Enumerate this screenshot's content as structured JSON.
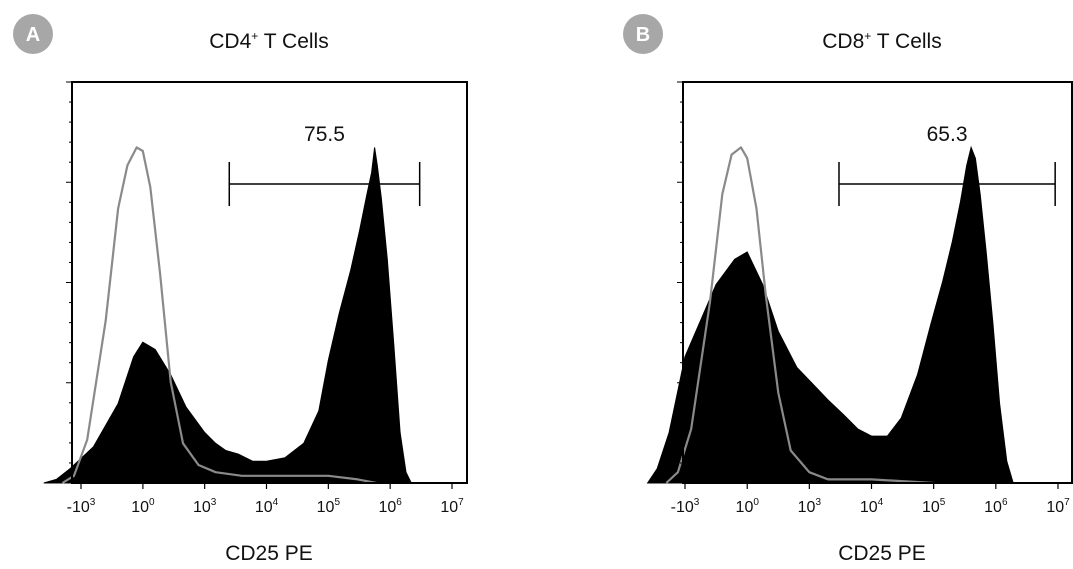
{
  "chart_data": [
    {
      "type": "area",
      "panel_letter": "A",
      "title": "CD4",
      "title_superscript": "+",
      "title_suffix": " T Cells",
      "xlabel": "CD25 PE",
      "ylabel": "",
      "x_scale": "biexponential",
      "x_ticks": [
        {
          "value": -1000,
          "base": "-10",
          "exp": "3"
        },
        {
          "value": 1,
          "base": "10",
          "exp": "0"
        },
        {
          "value": 1000,
          "base": "10",
          "exp": "3"
        },
        {
          "value": 10000,
          "base": "10",
          "exp": "4"
        },
        {
          "value": 100000,
          "base": "10",
          "exp": "5"
        },
        {
          "value": 1000000,
          "base": "10",
          "exp": "6"
        },
        {
          "value": 10000000,
          "base": "10",
          "exp": "7"
        }
      ],
      "ylim": [
        0,
        100
      ],
      "gate": {
        "label": "75.5",
        "x_start": 2500,
        "x_end": 3000000,
        "y": 75
      },
      "series": [
        {
          "fill": "#000000",
          "points": [
            [
              -4000,
              0
            ],
            [
              -2500,
              1
            ],
            [
              -1500,
              4
            ],
            [
              -800,
              10
            ],
            [
              -400,
              22
            ],
            [
              -150,
              35
            ],
            [
              0,
              39
            ],
            [
              200,
              37
            ],
            [
              450,
              30
            ],
            [
              700,
              21
            ],
            [
              1000,
              14
            ],
            [
              1500,
              11
            ],
            [
              2200,
              9
            ],
            [
              3500,
              8
            ],
            [
              6000,
              6
            ],
            [
              10000,
              6
            ],
            [
              20000,
              7
            ],
            [
              40000,
              11
            ],
            [
              70000,
              20
            ],
            [
              100000,
              34
            ],
            [
              150000,
              47
            ],
            [
              230000,
              59
            ],
            [
              320000,
              70
            ],
            [
              420000,
              80
            ],
            [
              500000,
              86
            ],
            [
              560000,
              93
            ],
            [
              620000,
              88
            ],
            [
              720000,
              79
            ],
            [
              900000,
              62
            ],
            [
              1150000,
              38
            ],
            [
              1450000,
              14
            ],
            [
              1800000,
              3
            ],
            [
              2200000,
              0
            ]
          ]
        },
        {
          "stroke": "#8a8a8a",
          "points": [
            [
              -2000,
              0
            ],
            [
              -1300,
              2
            ],
            [
              -900,
              12
            ],
            [
              -600,
              45
            ],
            [
              -400,
              76
            ],
            [
              -250,
              88
            ],
            [
              -100,
              93
            ],
            [
              0,
              92
            ],
            [
              120,
              82
            ],
            [
              280,
              58
            ],
            [
              450,
              28
            ],
            [
              650,
              11
            ],
            [
              900,
              5
            ],
            [
              1500,
              3
            ],
            [
              4000,
              2
            ],
            [
              20000,
              2
            ],
            [
              100000,
              2
            ],
            [
              300000,
              1
            ],
            [
              600000,
              0
            ]
          ]
        }
      ]
    },
    {
      "type": "area",
      "panel_letter": "B",
      "title": "CD8",
      "title_superscript": "+",
      "title_suffix": " T Cells",
      "xlabel": "CD25 PE",
      "ylabel": "",
      "x_scale": "biexponential",
      "x_ticks": [
        {
          "value": -1000,
          "base": "-10",
          "exp": "3"
        },
        {
          "value": 1,
          "base": "10",
          "exp": "0"
        },
        {
          "value": 1000,
          "base": "10",
          "exp": "3"
        },
        {
          "value": 10000,
          "base": "10",
          "exp": "4"
        },
        {
          "value": 100000,
          "base": "10",
          "exp": "5"
        },
        {
          "value": 1000000,
          "base": "10",
          "exp": "6"
        },
        {
          "value": 10000000,
          "base": "10",
          "exp": "7"
        }
      ],
      "ylim": [
        0,
        100
      ],
      "gate": {
        "label": "65.3",
        "x_start": 3000,
        "x_end": 9000000,
        "y": 75
      },
      "series": [
        {
          "fill": "#000000",
          "points": [
            [
              -4000,
              0
            ],
            [
              -2800,
              4
            ],
            [
              -1800,
              14
            ],
            [
              -1000,
              35
            ],
            [
              -500,
              55
            ],
            [
              -200,
              62
            ],
            [
              0,
              64
            ],
            [
              250,
              55
            ],
            [
              500,
              42
            ],
            [
              800,
              32
            ],
            [
              1200,
              27
            ],
            [
              2000,
              23
            ],
            [
              3500,
              19
            ],
            [
              6000,
              15
            ],
            [
              10000,
              13
            ],
            [
              18000,
              13
            ],
            [
              30000,
              18
            ],
            [
              55000,
              30
            ],
            [
              90000,
              44
            ],
            [
              140000,
              56
            ],
            [
              200000,
              67
            ],
            [
              270000,
              78
            ],
            [
              340000,
              88
            ],
            [
              400000,
              93
            ],
            [
              470000,
              90
            ],
            [
              560000,
              80
            ],
            [
              700000,
              64
            ],
            [
              900000,
              44
            ],
            [
              1150000,
              22
            ],
            [
              1500000,
              6
            ],
            [
              1900000,
              0
            ]
          ]
        },
        {
          "stroke": "#8a8a8a",
          "points": [
            [
              -2000,
              0
            ],
            [
              -1300,
              3
            ],
            [
              -900,
              15
            ],
            [
              -600,
              50
            ],
            [
              -400,
              80
            ],
            [
              -250,
              91
            ],
            [
              -100,
              93
            ],
            [
              0,
              90
            ],
            [
              150,
              76
            ],
            [
              300,
              52
            ],
            [
              500,
              25
            ],
            [
              700,
              9
            ],
            [
              1000,
              3
            ],
            [
              2000,
              1
            ],
            [
              10000,
              1
            ],
            [
              100000,
              0
            ]
          ]
        }
      ]
    }
  ]
}
